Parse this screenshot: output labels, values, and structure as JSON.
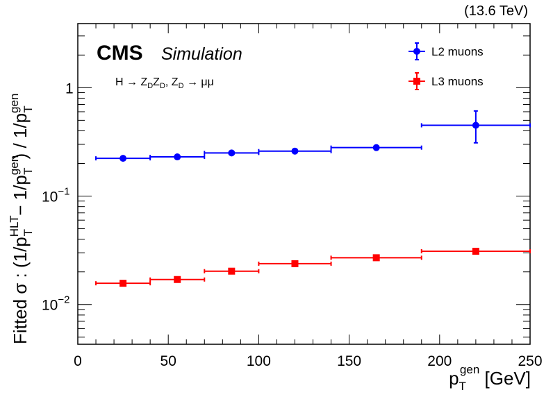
{
  "header": {
    "energy": "(13.6 TeV)",
    "experiment": "CMS",
    "status": "Simulation"
  },
  "process_label": {
    "h": "H → Z",
    "sub1": "D",
    "z": "Z",
    "sub2": "D",
    "comma": ", Z",
    "sub3": "D",
    "decay": " → μμ"
  },
  "x_axis": {
    "p": "p",
    "sub": "T",
    "sup": "gen",
    "unit": " [GeV]",
    "tick_labels": [
      "0",
      "50",
      "100",
      "150",
      "200",
      "250"
    ]
  },
  "y_axis": {
    "part1": "Fitted σ : (1/p",
    "hlt_sup": "HLT",
    "t_sub1": "T",
    "part2": " − 1/p",
    "gen_sup1": "gen",
    "t_sub2": "T",
    "part3": ") / 1/p",
    "gen_sup2": "gen",
    "t_sub3": "T",
    "tick_labels": [
      {
        "base": "10",
        "exp": "−2",
        "value": 0.01
      },
      {
        "base": "10",
        "exp": "−1",
        "value": 0.1
      },
      {
        "base": "1",
        "exp": "",
        "value": 1
      }
    ]
  },
  "chart_data": {
    "type": "scatter",
    "x_scale": "linear",
    "y_scale": "log",
    "xlim": [
      0,
      250
    ],
    "ylim": [
      0.0043,
      3.9
    ],
    "grid": false,
    "legend_placement": "top-right",
    "series": [
      {
        "name": "L2 muons",
        "color": "#0000ff",
        "marker": "circle",
        "points": [
          {
            "x": 25,
            "xlo": 10,
            "xhi": 40,
            "y": 0.223,
            "ylo": 0.223,
            "yhi": 0.223
          },
          {
            "x": 55,
            "xlo": 40,
            "xhi": 70,
            "y": 0.23,
            "ylo": 0.23,
            "yhi": 0.23
          },
          {
            "x": 85,
            "xlo": 70,
            "xhi": 100,
            "y": 0.25,
            "ylo": 0.25,
            "yhi": 0.25
          },
          {
            "x": 120,
            "xlo": 100,
            "xhi": 140,
            "y": 0.26,
            "ylo": 0.26,
            "yhi": 0.26
          },
          {
            "x": 165,
            "xlo": 140,
            "xhi": 190,
            "y": 0.28,
            "ylo": 0.28,
            "yhi": 0.28
          },
          {
            "x": 220,
            "xlo": 190,
            "xhi": 250,
            "y": 0.45,
            "ylo": 0.31,
            "yhi": 0.61
          }
        ]
      },
      {
        "name": "L3 muons",
        "color": "#ff0000",
        "marker": "square",
        "points": [
          {
            "x": 25,
            "xlo": 10,
            "xhi": 40,
            "y": 0.0157,
            "ylo": 0.0157,
            "yhi": 0.0157
          },
          {
            "x": 55,
            "xlo": 40,
            "xhi": 70,
            "y": 0.017,
            "ylo": 0.017,
            "yhi": 0.017
          },
          {
            "x": 85,
            "xlo": 70,
            "xhi": 100,
            "y": 0.0203,
            "ylo": 0.0203,
            "yhi": 0.0203
          },
          {
            "x": 120,
            "xlo": 100,
            "xhi": 140,
            "y": 0.0238,
            "ylo": 0.0238,
            "yhi": 0.0238
          },
          {
            "x": 165,
            "xlo": 140,
            "xhi": 190,
            "y": 0.027,
            "ylo": 0.027,
            "yhi": 0.027
          },
          {
            "x": 220,
            "xlo": 190,
            "xhi": 250,
            "y": 0.031,
            "ylo": 0.031,
            "yhi": 0.031
          }
        ]
      }
    ]
  }
}
